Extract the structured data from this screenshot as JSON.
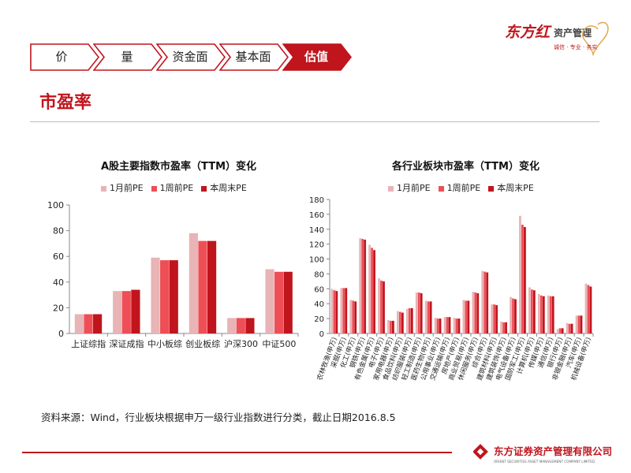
{
  "brand": {
    "top_logo_text": "东方红",
    "top_logo_sub": "资产管理",
    "top_logo_slogan": "诚信 · 专业 · 务实",
    "bottom_logo_cn": "东方证券资产管理有限公司",
    "bottom_logo_en": "ORIENT SECURITIES ASSET MANAGEMENT COMPANY LIMITED"
  },
  "nav": {
    "tabs": [
      {
        "label": "价",
        "active": false
      },
      {
        "label": "量",
        "active": false
      },
      {
        "label": "资金面",
        "active": false
      },
      {
        "label": "基本面",
        "active": false
      },
      {
        "label": "估值",
        "active": true
      }
    ]
  },
  "section_title": "市盈率",
  "colors": {
    "accent": "#c0151d",
    "series_1m": "#e8b4b6",
    "series_1w": "#ee4e55",
    "series_now": "#c0151d",
    "axis": "#888888"
  },
  "source_note": "资料来源：Wind，行业板块根据申万一级行业指数进行分类，截止日期2016.8.5",
  "chart_data": [
    {
      "type": "bar",
      "title": "A股主要指数市盈率（TTM）变化",
      "categories": [
        "上证综指",
        "深证成指",
        "中小板综",
        "创业板综",
        "沪深300",
        "中证500"
      ],
      "series": [
        {
          "name": "1月前PE",
          "values": [
            15,
            33,
            59,
            78,
            12,
            50
          ]
        },
        {
          "name": "1周前PE",
          "values": [
            15,
            33,
            57,
            72,
            12,
            48
          ]
        },
        {
          "name": "本周末PE",
          "values": [
            15,
            34,
            57,
            72,
            12,
            48
          ]
        }
      ],
      "ylim": [
        0,
        100
      ],
      "yticks": [
        "0",
        "20",
        "40",
        "60",
        "80",
        "100"
      ],
      "legend": "top",
      "grid": false
    },
    {
      "type": "bar",
      "title": "各行业板块市盈率（TTM）变化",
      "categories": [
        "农林牧渔(申万)",
        "采掘(申万)",
        "化工(申万)",
        "钢铁(申万)",
        "有色金属(申万)",
        "电子(申万)",
        "家用电器(申万)",
        "食品饮料(申万)",
        "纺织服装(申万)",
        "轻工制造(申万)",
        "医药生物(申万)",
        "公用事业(申万)",
        "交通运输(申万)",
        "房地产(申万)",
        "商业贸易(申万)",
        "休闲服务(申万)",
        "综合(申万)",
        "建筑材料(申万)",
        "建筑装饰(申万)",
        "电气设备(申万)",
        "国防军工(申万)",
        "计算机(申万)",
        "传媒(申万)",
        "通信(申万)",
        "银行(申万)",
        "非银金融(申万)",
        "汽车(申万)",
        "机械设备(申万)"
      ],
      "series": [
        {
          "name": "1月前PE",
          "values": [
            60,
            61,
            45,
            128,
            119,
            74,
            18,
            30,
            33,
            55,
            44,
            21,
            22,
            21,
            45,
            56,
            84,
            39,
            16,
            49,
            158,
            62,
            53,
            51,
            6,
            14,
            24,
            67
          ]
        },
        {
          "name": "1周前PE",
          "values": [
            58,
            61,
            44,
            127,
            115,
            71,
            17,
            29,
            34,
            55,
            43,
            20,
            22,
            20,
            44,
            55,
            83,
            39,
            15,
            47,
            146,
            59,
            51,
            50,
            7,
            13,
            24,
            65
          ]
        },
        {
          "name": "本周末PE",
          "values": [
            57,
            61,
            43,
            126,
            112,
            70,
            17,
            28,
            34,
            54,
            43,
            20,
            22,
            20,
            44,
            54,
            82,
            38,
            15,
            46,
            143,
            58,
            50,
            50,
            7,
            13,
            24,
            63
          ]
        }
      ],
      "ylim": [
        0,
        180
      ],
      "yticks": [
        "0",
        "20",
        "40",
        "60",
        "80",
        "100",
        "120",
        "140",
        "160",
        "180"
      ],
      "legend": "top",
      "grid": false
    }
  ]
}
